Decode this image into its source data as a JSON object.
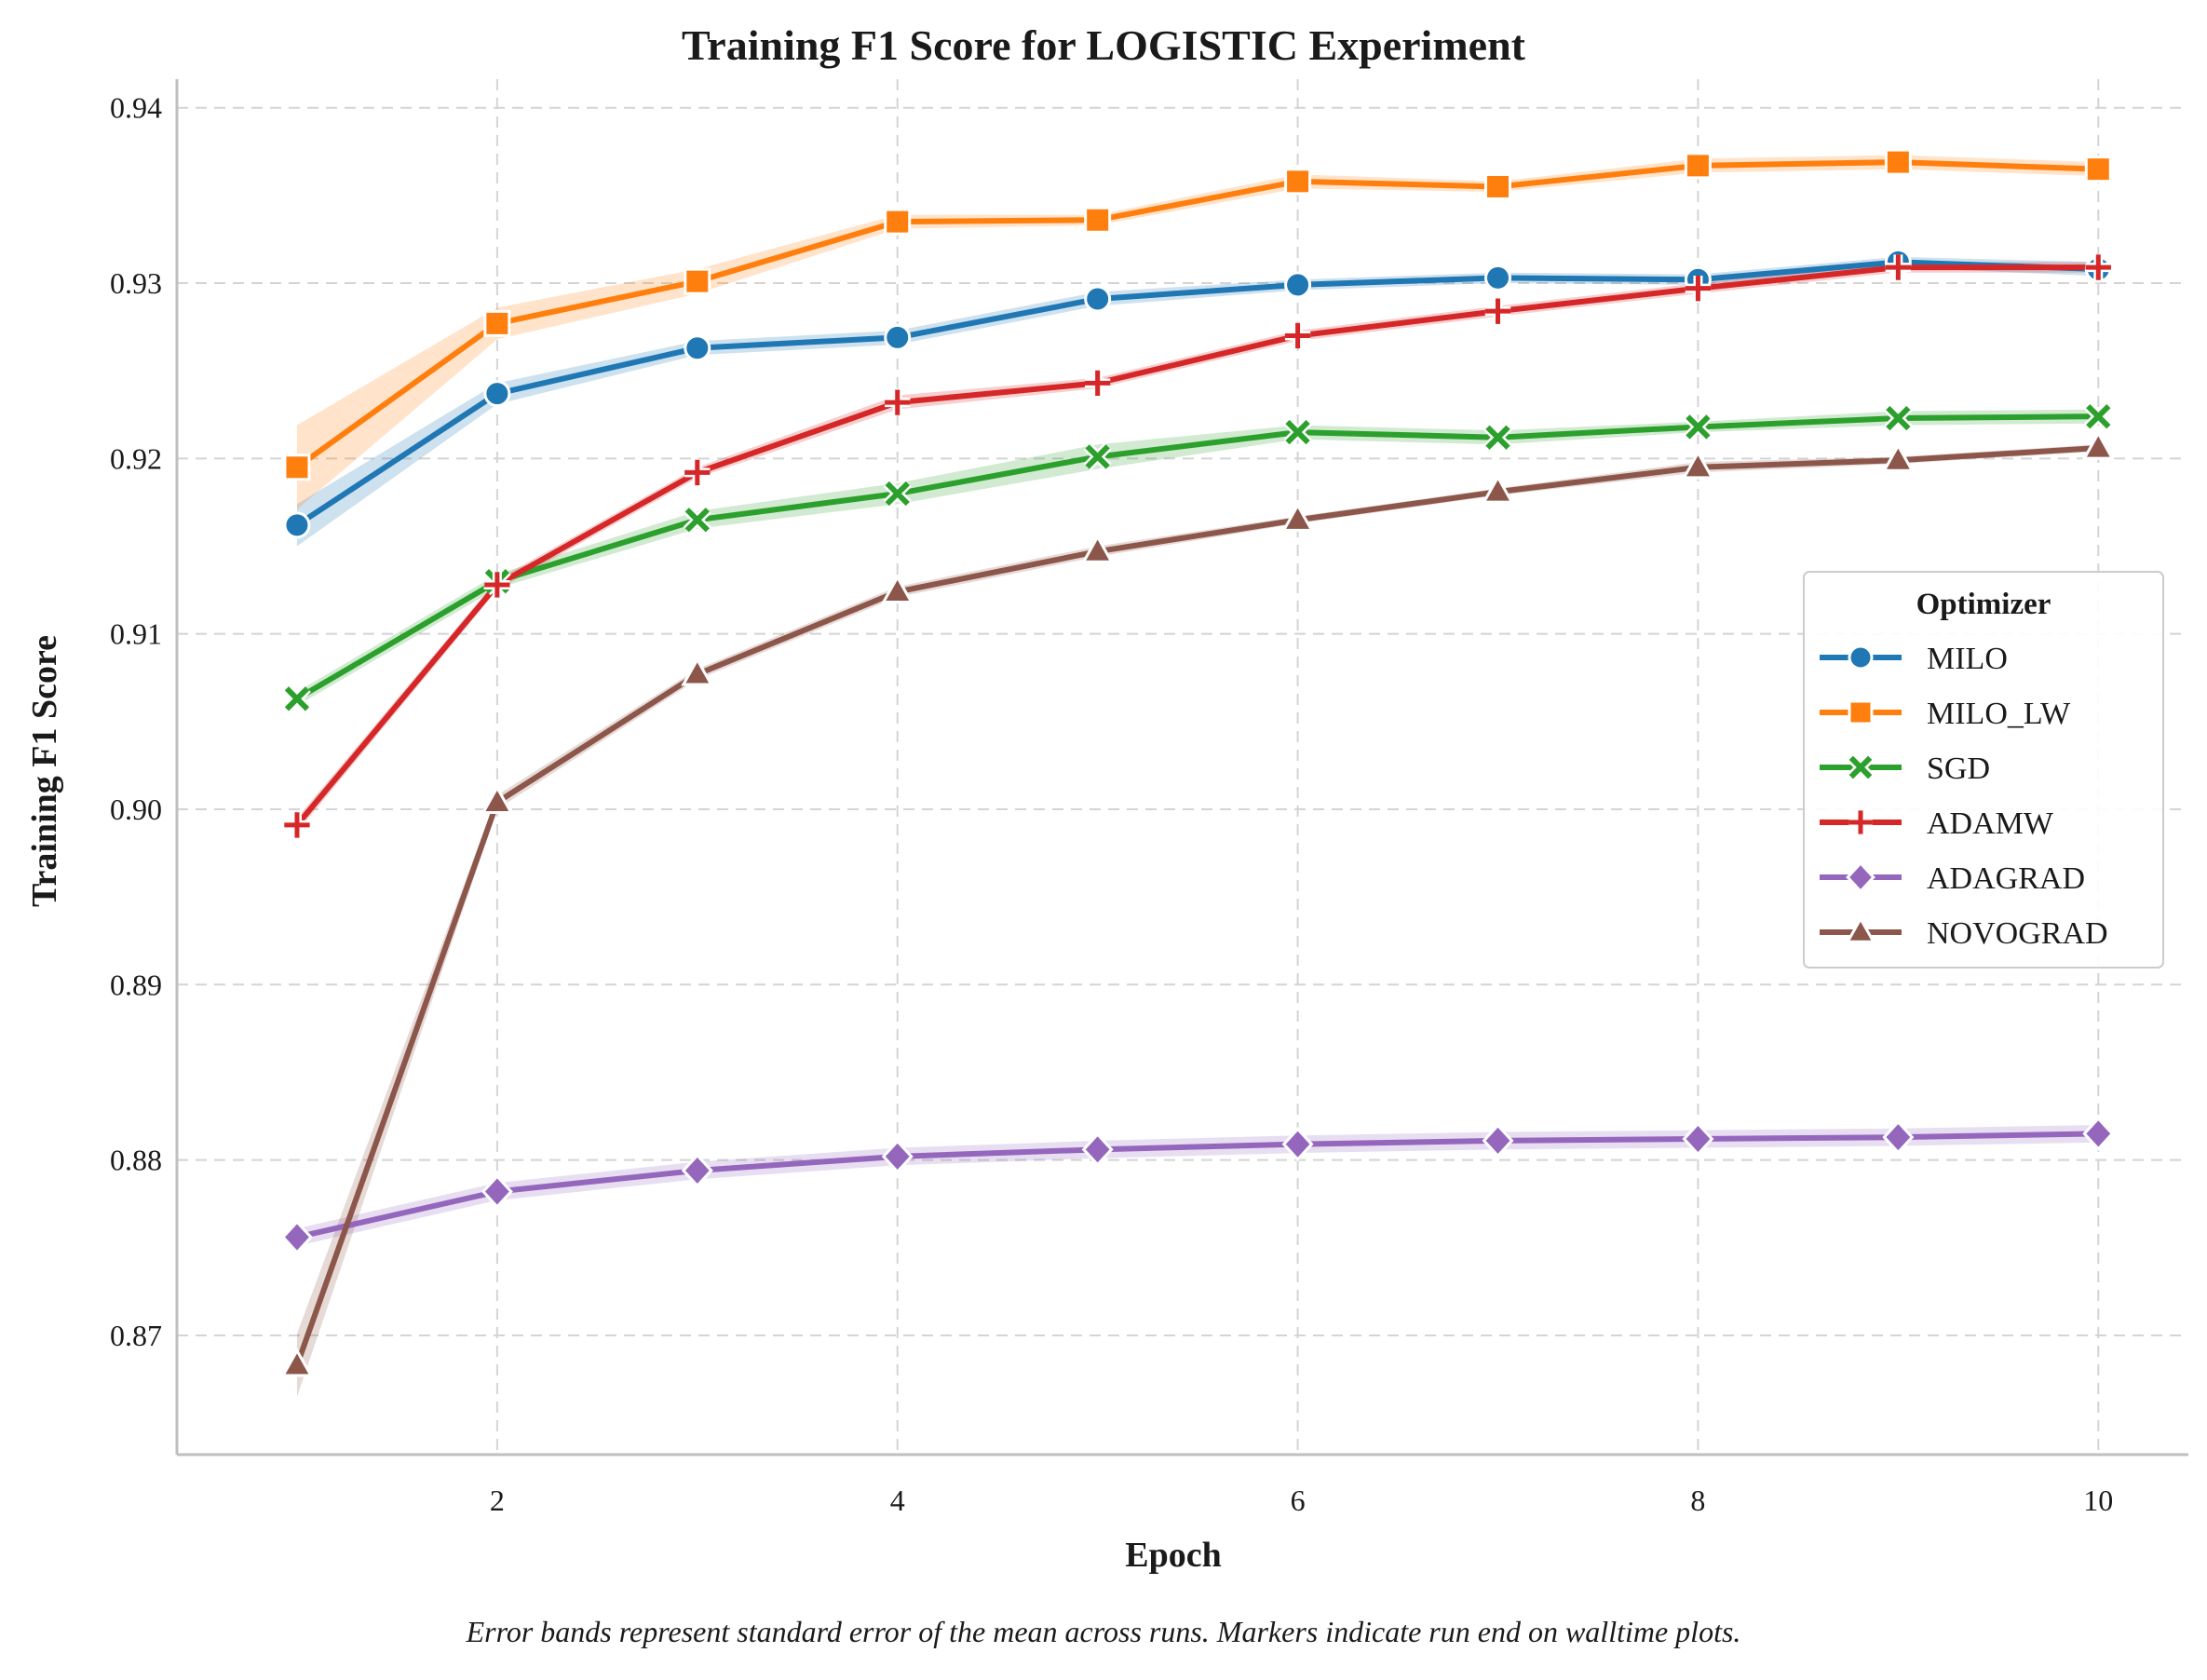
{
  "chart_data": {
    "type": "line",
    "title": "Training F1 Score for LOGISTIC Experiment",
    "xlabel": "Epoch",
    "ylabel": "Training F1 Score",
    "xlim": [
      0.4,
      10.45
    ],
    "ylim": [
      0.8632,
      0.9411
    ],
    "xticks": [
      2,
      4,
      6,
      8,
      10
    ],
    "xtick_labels": [
      "2",
      "4",
      "6",
      "8",
      "10"
    ],
    "yticks": [
      0.87,
      0.88,
      0.89,
      0.9,
      0.91,
      0.92,
      0.93,
      0.94
    ],
    "ytick_labels": [
      "0.87",
      "0.88",
      "0.89",
      "0.90",
      "0.91",
      "0.92",
      "0.93",
      "0.94"
    ],
    "grid": true,
    "legend": {
      "title": "Optimizer",
      "position": "center-right"
    },
    "x": [
      1,
      2,
      3,
      4,
      5,
      6,
      7,
      8,
      9,
      10
    ],
    "series": [
      {
        "name": "MILO",
        "color": "#1f77b4",
        "marker": "circle",
        "values": [
          0.9162,
          0.9237,
          0.9263,
          0.9269,
          0.9291,
          0.9299,
          0.9303,
          0.9302,
          0.9312,
          0.9308
        ],
        "err": [
          0.0012,
          0.0006,
          0.0004,
          0.0004,
          0.0004,
          0.0003,
          0.0003,
          0.0003,
          0.0003,
          0.0004
        ]
      },
      {
        "name": "MILO_LW",
        "color": "#ff7f0e",
        "marker": "square",
        "values": [
          0.9195,
          0.9277,
          0.9301,
          0.9335,
          0.9336,
          0.9358,
          0.9355,
          0.9367,
          0.9369,
          0.9365
        ],
        "err": [
          0.0024,
          0.0009,
          0.0007,
          0.0004,
          0.0003,
          0.0004,
          0.0003,
          0.0004,
          0.0004,
          0.0004
        ]
      },
      {
        "name": "SGD",
        "color": "#2ca02c",
        "marker": "x",
        "values": [
          0.9063,
          0.913,
          0.9165,
          0.918,
          0.9201,
          0.9215,
          0.9212,
          0.9218,
          0.9223,
          0.9224
        ],
        "err": [
          0.0004,
          0.0004,
          0.0005,
          0.0006,
          0.0007,
          0.0004,
          0.0004,
          0.0003,
          0.0004,
          0.0004
        ]
      },
      {
        "name": "ADAMW",
        "color": "#d62728",
        "marker": "plus",
        "values": [
          0.8991,
          0.9128,
          0.9192,
          0.9232,
          0.9243,
          0.927,
          0.9284,
          0.9297,
          0.9309,
          0.9309
        ],
        "err": [
          0.0004,
          0.0003,
          0.0003,
          0.0004,
          0.0003,
          0.0003,
          0.0003,
          0.0003,
          0.0003,
          0.0003
        ]
      },
      {
        "name": "ADAGRAD",
        "color": "#9467bd",
        "marker": "diamond",
        "values": [
          0.8756,
          0.8782,
          0.8794,
          0.8802,
          0.8806,
          0.8809,
          0.8811,
          0.8812,
          0.8813,
          0.8815
        ],
        "err": [
          0.0005,
          0.0005,
          0.0005,
          0.0005,
          0.0005,
          0.0005,
          0.0005,
          0.0005,
          0.0005,
          0.0005
        ]
      },
      {
        "name": "NOVOGRAD",
        "color": "#8c564b",
        "marker": "triangle",
        "values": [
          0.8683,
          0.9004,
          0.9077,
          0.9124,
          0.9147,
          0.9165,
          0.9181,
          0.9195,
          0.9199,
          0.9206
        ],
        "err": [
          0.0018,
          0.0004,
          0.0003,
          0.0003,
          0.0003,
          0.0002,
          0.0002,
          0.0003,
          0.0002,
          0.0002
        ]
      }
    ]
  },
  "caption": "Error bands represent standard error of the mean across runs. Markers indicate run end on walltime plots."
}
